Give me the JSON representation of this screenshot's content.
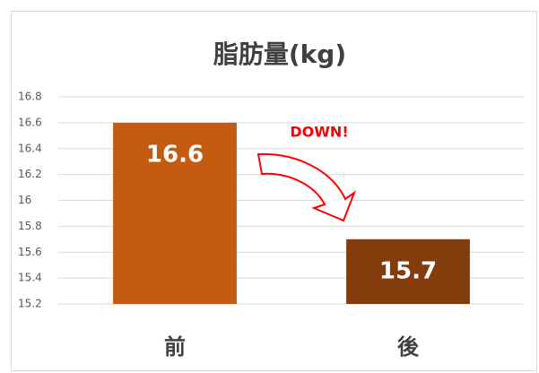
{
  "chart_data": {
    "type": "bar",
    "title": "脂肪量(kg)",
    "categories": [
      "前",
      "後"
    ],
    "values": [
      16.6,
      15.7
    ],
    "colors": [
      "#c55a11",
      "#843c0c"
    ],
    "ylim": [
      15.2,
      16.8
    ],
    "yticks": [
      15.2,
      15.4,
      15.6,
      15.8,
      16,
      16.2,
      16.4,
      16.6,
      16.8
    ],
    "grid": true,
    "annotation": "DOWN!"
  }
}
